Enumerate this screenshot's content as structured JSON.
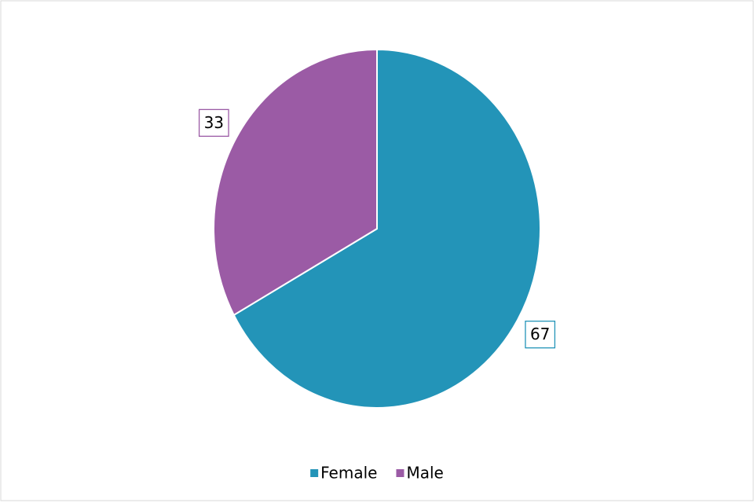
{
  "chart_data": {
    "type": "pie",
    "categories": [
      "Female",
      "Male"
    ],
    "values": [
      67,
      33
    ],
    "colors": [
      "#2394b8",
      "#9b5ba5"
    ],
    "legend": "bottom"
  }
}
